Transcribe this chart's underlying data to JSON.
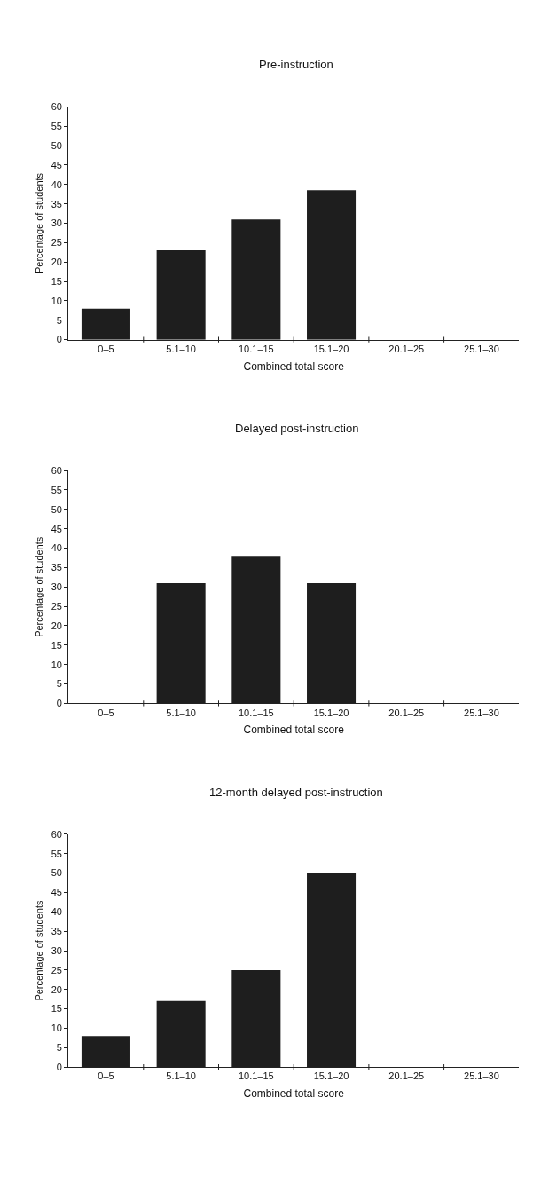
{
  "chart_data": [
    {
      "type": "bar",
      "title": "Pre-instruction",
      "xlabel": "Combined total score",
      "ylabel": "Percentage of students",
      "categories": [
        "0–5",
        "5.1–10",
        "10.1–15",
        "15.1–20",
        "20.1–25",
        "25.1–30"
      ],
      "values": [
        8,
        23,
        31,
        38.5,
        0,
        0
      ],
      "color": "#1e1e1e",
      "ylim": [
        0,
        60
      ],
      "yticks": [
        0,
        5,
        10,
        15,
        20,
        25,
        30,
        35,
        40,
        45,
        50,
        55,
        60
      ]
    },
    {
      "type": "bar",
      "title": "Delayed post-instruction",
      "xlabel": "Combined total score",
      "ylabel": "Percentage of students",
      "categories": [
        "0–5",
        "5.1–10",
        "10.1–15",
        "15.1–20",
        "20.1–25",
        "25.1–30"
      ],
      "values": [
        0,
        31,
        38,
        31,
        0,
        0
      ],
      "color": "#1e1e1e",
      "ylim": [
        0,
        60
      ],
      "yticks": [
        0,
        5,
        10,
        15,
        20,
        25,
        30,
        35,
        40,
        45,
        50,
        55,
        60
      ]
    },
    {
      "type": "bar",
      "title": "12-month delayed post-instruction",
      "xlabel": "Combined total score",
      "ylabel": "Percentage of students",
      "categories": [
        "0–5",
        "5.1–10",
        "10.1–15",
        "15.1–20",
        "20.1–25",
        "25.1–30"
      ],
      "values": [
        8,
        17,
        25,
        50,
        0,
        0
      ],
      "color": "#1e1e1e",
      "ylim": [
        0,
        60
      ],
      "yticks": [
        0,
        5,
        10,
        15,
        20,
        25,
        30,
        35,
        40,
        45,
        50,
        55,
        60
      ]
    }
  ]
}
